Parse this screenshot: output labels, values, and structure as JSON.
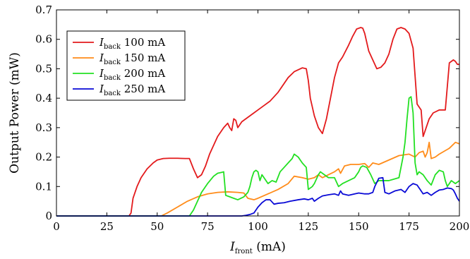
{
  "chart_data": {
    "type": "line",
    "xlabel_main": "I",
    "xlabel_sub": "front",
    "xlabel_unit": " (mA)",
    "ylabel": "Output Power (mW)",
    "xlim": [
      0,
      200
    ],
    "ylim": [
      0,
      0.7
    ],
    "xticks": [
      0,
      25,
      50,
      75,
      100,
      125,
      150,
      175,
      200
    ],
    "yticks": [
      0,
      0.1,
      0.2,
      0.3,
      0.4,
      0.5,
      0.6,
      0.7
    ],
    "xtick_labels": [
      "0",
      "25",
      "50",
      "75",
      "100",
      "125",
      "150",
      "175",
      "200"
    ],
    "ytick_labels": [
      "0",
      "0.1",
      "0.2",
      "0.3",
      "0.4",
      "0.5",
      "0.6",
      "0.7"
    ],
    "grid": false,
    "legend_position": "upper-left",
    "series": [
      {
        "name": "I_back 100 mA",
        "label_main": "I",
        "label_sub": "back",
        "label_rest": " 100 mA",
        "color": "#e31a1c",
        "x": [
          0,
          36,
          37,
          38,
          40,
          42,
          45,
          48,
          50,
          53,
          56,
          60,
          64,
          66,
          68,
          70,
          72,
          74,
          76,
          78,
          80,
          83,
          85,
          86,
          87,
          88,
          89,
          90,
          92,
          95,
          98,
          100,
          103,
          106,
          110,
          115,
          118,
          122,
          124,
          125,
          126,
          128,
          130,
          132,
          134,
          136,
          138,
          140,
          142,
          145,
          147,
          149,
          151,
          152,
          153,
          155,
          157,
          159,
          161,
          163,
          165,
          167,
          169,
          171,
          173,
          175,
          177,
          179,
          181,
          182,
          183,
          184,
          185,
          187,
          190,
          193,
          195,
          197,
          198,
          199,
          200
        ],
        "y": [
          0,
          0,
          0.01,
          0.06,
          0.1,
          0.13,
          0.16,
          0.18,
          0.19,
          0.195,
          0.196,
          0.196,
          0.195,
          0.195,
          0.16,
          0.13,
          0.14,
          0.17,
          0.21,
          0.24,
          0.27,
          0.3,
          0.315,
          0.3,
          0.29,
          0.33,
          0.325,
          0.3,
          0.32,
          0.335,
          0.35,
          0.36,
          0.375,
          0.39,
          0.42,
          0.47,
          0.49,
          0.503,
          0.5,
          0.46,
          0.4,
          0.34,
          0.3,
          0.28,
          0.33,
          0.4,
          0.47,
          0.52,
          0.54,
          0.58,
          0.61,
          0.635,
          0.64,
          0.638,
          0.62,
          0.56,
          0.53,
          0.5,
          0.505,
          0.52,
          0.55,
          0.6,
          0.635,
          0.64,
          0.635,
          0.62,
          0.57,
          0.38,
          0.36,
          0.27,
          0.29,
          0.31,
          0.33,
          0.35,
          0.36,
          0.36,
          0.52,
          0.53,
          0.525,
          0.515,
          0.515
        ]
      },
      {
        "name": "I_back 150 mA",
        "label_main": "I",
        "label_sub": "back",
        "label_rest": " 150 mA",
        "color": "#ff8c1a",
        "x": [
          0,
          52,
          55,
          60,
          65,
          70,
          75,
          80,
          85,
          90,
          93,
          95,
          98,
          100,
          105,
          110,
          115,
          118,
          122,
          125,
          128,
          130,
          132,
          135,
          138,
          140,
          141,
          143,
          146,
          150,
          153,
          155,
          157,
          160,
          165,
          170,
          175,
          178,
          180,
          182,
          183,
          184,
          185,
          186,
          188,
          190,
          195,
          198,
          200
        ],
        "y": [
          0,
          0,
          0.01,
          0.03,
          0.05,
          0.065,
          0.075,
          0.08,
          0.082,
          0.08,
          0.078,
          0.06,
          0.055,
          0.06,
          0.075,
          0.09,
          0.11,
          0.135,
          0.13,
          0.125,
          0.13,
          0.14,
          0.13,
          0.14,
          0.15,
          0.16,
          0.145,
          0.17,
          0.175,
          0.175,
          0.178,
          0.165,
          0.18,
          0.175,
          0.19,
          0.205,
          0.21,
          0.2,
          0.215,
          0.22,
          0.2,
          0.215,
          0.25,
          0.195,
          0.2,
          0.21,
          0.23,
          0.25,
          0.245
        ]
      },
      {
        "name": "I_back 200 mA",
        "label_main": "I",
        "label_sub": "back",
        "label_rest": " 200 mA",
        "color": "#22e022",
        "x": [
          0,
          66,
          68,
          70,
          72,
          75,
          78,
          80,
          82,
          83,
          84,
          86,
          88,
          90,
          93,
          95,
          96,
          97,
          98,
          99,
          100,
          101,
          102,
          103,
          105,
          107,
          109,
          111,
          113,
          115,
          117,
          118,
          120,
          122,
          124,
          125,
          127,
          128,
          130,
          131,
          133,
          135,
          138,
          140,
          142,
          145,
          148,
          150,
          151,
          152,
          154,
          156,
          158,
          160,
          165,
          170,
          172,
          173,
          174,
          175,
          176,
          177,
          178,
          179,
          180,
          182,
          184,
          186,
          188,
          190,
          192,
          193,
          194,
          196,
          198,
          200
        ],
        "y": [
          0,
          0,
          0.02,
          0.05,
          0.08,
          0.11,
          0.135,
          0.145,
          0.148,
          0.15,
          0.07,
          0.065,
          0.06,
          0.055,
          0.065,
          0.08,
          0.1,
          0.13,
          0.15,
          0.155,
          0.15,
          0.12,
          0.14,
          0.13,
          0.11,
          0.12,
          0.115,
          0.15,
          0.165,
          0.18,
          0.195,
          0.21,
          0.2,
          0.18,
          0.165,
          0.09,
          0.1,
          0.11,
          0.14,
          0.15,
          0.14,
          0.13,
          0.13,
          0.1,
          0.11,
          0.12,
          0.13,
          0.15,
          0.165,
          0.17,
          0.165,
          0.14,
          0.11,
          0.12,
          0.12,
          0.13,
          0.2,
          0.25,
          0.33,
          0.4,
          0.405,
          0.35,
          0.18,
          0.14,
          0.15,
          0.14,
          0.12,
          0.105,
          0.14,
          0.155,
          0.15,
          0.12,
          0.1,
          0.12,
          0.11,
          0.12
        ]
      },
      {
        "name": "I_back 250 mA",
        "label_main": "I",
        "label_sub": "back",
        "label_rest": " 250 mA",
        "color": "#0a0ad6",
        "x": [
          0,
          92,
          94,
          96,
          98,
          100,
          102,
          104,
          106,
          108,
          110,
          113,
          116,
          120,
          123,
          125,
          127,
          128,
          130,
          132,
          135,
          138,
          140,
          141,
          142,
          145,
          148,
          150,
          153,
          155,
          157,
          158,
          160,
          162,
          163,
          165,
          168,
          171,
          173,
          175,
          177,
          179,
          180,
          182,
          184,
          186,
          188,
          190,
          192,
          194,
          196,
          197,
          198,
          199,
          200
        ],
        "y": [
          0,
          0,
          0.002,
          0.005,
          0.01,
          0.03,
          0.045,
          0.055,
          0.055,
          0.04,
          0.043,
          0.045,
          0.05,
          0.055,
          0.058,
          0.055,
          0.06,
          0.05,
          0.06,
          0.068,
          0.072,
          0.075,
          0.07,
          0.085,
          0.075,
          0.07,
          0.075,
          0.078,
          0.075,
          0.075,
          0.08,
          0.1,
          0.128,
          0.13,
          0.08,
          0.075,
          0.085,
          0.09,
          0.08,
          0.1,
          0.11,
          0.105,
          0.095,
          0.075,
          0.08,
          0.07,
          0.08,
          0.088,
          0.09,
          0.095,
          0.093,
          0.088,
          0.075,
          0.06,
          0.05
        ]
      }
    ]
  }
}
